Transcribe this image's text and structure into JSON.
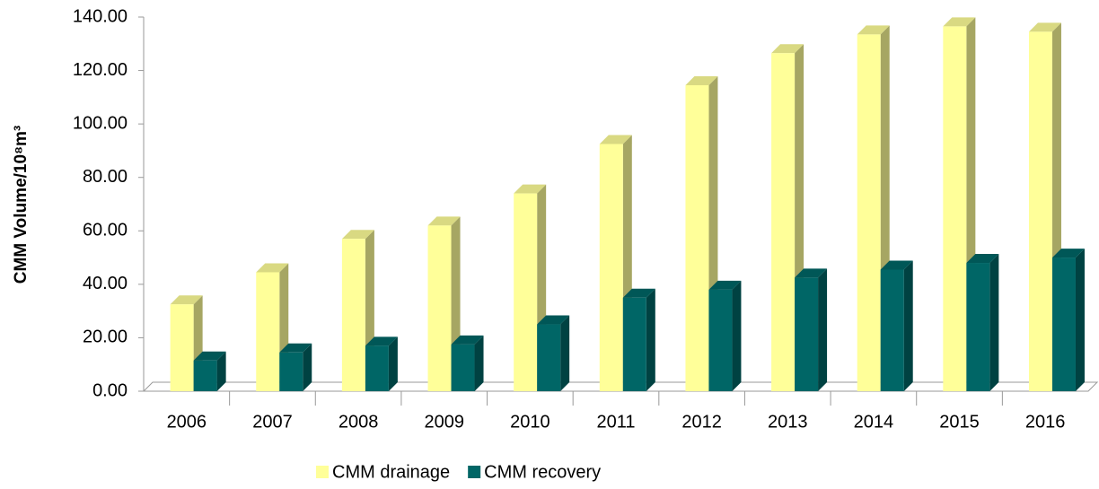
{
  "chart_data": {
    "type": "bar3d",
    "y_label": "CMM Volume/10⁸m³",
    "categories": [
      "2006",
      "2007",
      "2008",
      "2009",
      "2010",
      "2011",
      "2012",
      "2013",
      "2014",
      "2015",
      "2016"
    ],
    "series": [
      {
        "name": "CMM drainage",
        "color": "#ffff99",
        "values": [
          32.5,
          44.5,
          57,
          62,
          74,
          92.5,
          114.5,
          126.5,
          133.5,
          136.5,
          134.5
        ]
      },
      {
        "name": "CMM recovery",
        "color": "#006666",
        "values": [
          11.5,
          14.5,
          17,
          17.5,
          25,
          35,
          38,
          42.5,
          45.5,
          48,
          50
        ]
      }
    ],
    "ylim": [
      0,
      140
    ],
    "yticks": [
      {
        "value": 0,
        "label": "0.00"
      },
      {
        "value": 20,
        "label": "20.00"
      },
      {
        "value": 40,
        "label": "40.00"
      },
      {
        "value": 60,
        "label": "60.00"
      },
      {
        "value": 80,
        "label": "80.00"
      },
      {
        "value": 100,
        "label": "100.00"
      },
      {
        "value": 120,
        "label": "120.00"
      },
      {
        "value": 140,
        "label": "140.00"
      }
    ],
    "legend": "bottom"
  }
}
